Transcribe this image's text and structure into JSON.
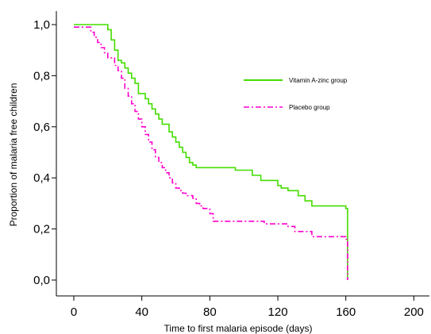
{
  "chart_data": {
    "type": "line",
    "step": true,
    "title": "",
    "xlabel": "Time to first malaria episode (days)",
    "ylabel": "Proportion of malaria free children",
    "xlim": [
      -10,
      210
    ],
    "ylim": [
      -0.05,
      1.05
    ],
    "x_ticks": [
      0,
      40,
      80,
      120,
      160,
      200
    ],
    "x_tick_labels": [
      "0",
      "40",
      "80",
      "120",
      "160",
      "200"
    ],
    "y_ticks": [
      0,
      0.2,
      0.4,
      0.6,
      0.8,
      1.0
    ],
    "y_tick_labels": [
      "0,0",
      "0,2",
      "0,4",
      "0,6",
      "0,8",
      "1,0"
    ],
    "grid": false,
    "legend_position": "right",
    "series": [
      {
        "name": "Vitamin A-zinc group",
        "color": "#44dd00",
        "dash": "solid",
        "x": [
          0,
          20,
          22,
          24,
          26,
          28,
          30,
          32,
          34,
          36,
          38,
          42,
          44,
          46,
          48,
          50,
          52,
          56,
          58,
          60,
          62,
          64,
          66,
          68,
          70,
          72,
          74,
          76,
          80,
          95,
          105,
          110,
          120,
          122,
          126,
          132,
          136,
          140,
          160,
          161
        ],
        "y": [
          1.0,
          0.98,
          0.94,
          0.9,
          0.86,
          0.85,
          0.83,
          0.81,
          0.79,
          0.77,
          0.73,
          0.71,
          0.69,
          0.67,
          0.65,
          0.63,
          0.61,
          0.58,
          0.56,
          0.54,
          0.52,
          0.5,
          0.48,
          0.46,
          0.45,
          0.44,
          0.44,
          0.44,
          0.44,
          0.43,
          0.41,
          0.39,
          0.37,
          0.36,
          0.35,
          0.33,
          0.31,
          0.29,
          0.28,
          0.0
        ]
      },
      {
        "name": "Placebo group",
        "color": "#ff00cc",
        "dash": "dashdot",
        "x": [
          0,
          10,
          12,
          14,
          16,
          18,
          20,
          24,
          26,
          28,
          30,
          32,
          34,
          36,
          38,
          40,
          42,
          44,
          46,
          48,
          50,
          52,
          54,
          56,
          58,
          60,
          62,
          64,
          66,
          70,
          72,
          74,
          76,
          80,
          82,
          86,
          92,
          100,
          112,
          122,
          126,
          130,
          140,
          160,
          161
        ],
        "y": [
          0.99,
          0.97,
          0.95,
          0.93,
          0.91,
          0.89,
          0.87,
          0.84,
          0.82,
          0.79,
          0.75,
          0.72,
          0.69,
          0.66,
          0.63,
          0.6,
          0.57,
          0.54,
          0.51,
          0.48,
          0.46,
          0.44,
          0.42,
          0.4,
          0.38,
          0.36,
          0.35,
          0.34,
          0.33,
          0.32,
          0.3,
          0.29,
          0.28,
          0.26,
          0.23,
          0.23,
          0.23,
          0.23,
          0.22,
          0.22,
          0.21,
          0.19,
          0.17,
          0.16,
          0.0
        ]
      }
    ]
  }
}
